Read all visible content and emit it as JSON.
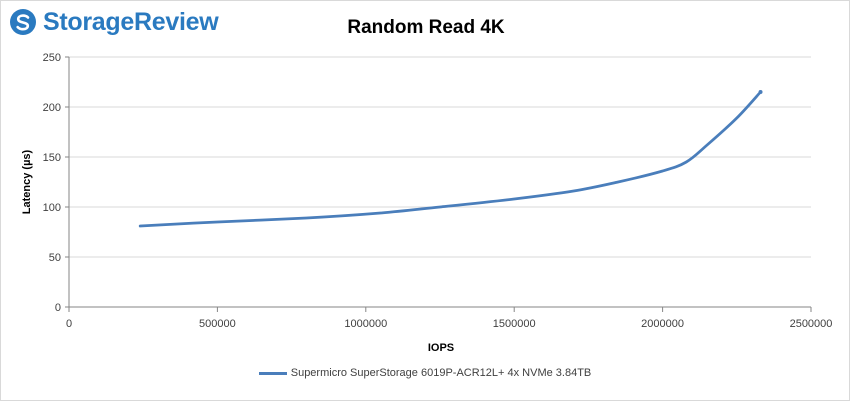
{
  "logo": {
    "text": "StorageReview",
    "icon": "storagereview-logo-icon",
    "color": "#2a7ac0"
  },
  "chart_data": {
    "type": "line",
    "title": "Random Read 4K",
    "xlabel": "IOPS",
    "ylabel": "Latency (µs)",
    "xlim": [
      0,
      2500000
    ],
    "ylim": [
      0,
      250
    ],
    "x_ticks": [
      0,
      500000,
      1000000,
      1500000,
      2000000,
      2500000
    ],
    "y_ticks": [
      0,
      50,
      100,
      150,
      200,
      250
    ],
    "x_tick_labels": [
      "0",
      "500000",
      "1000000",
      "1500000",
      "2000000",
      "2500000"
    ],
    "y_tick_labels": [
      "0",
      "50",
      "100",
      "150",
      "200",
      "250"
    ],
    "grid": "horizontal",
    "legend_position": "bottom",
    "series": [
      {
        "name": "Supermicro SuperStorage 6019P-ACR12L+ 4x NVMe 3.84TB",
        "color": "#4a7ebb",
        "x": [
          240000,
          500000,
          800000,
          1050000,
          1250000,
          1500000,
          1700000,
          1850000,
          2000000,
          2080000,
          2150000,
          2250000,
          2330000
        ],
        "y": [
          81,
          85,
          89,
          94,
          100,
          108,
          116,
          125,
          136,
          145,
          162,
          189,
          215
        ]
      }
    ]
  }
}
